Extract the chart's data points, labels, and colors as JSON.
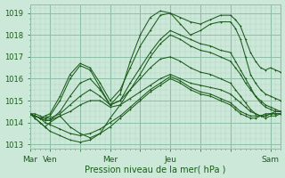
{
  "bg_color": "#cce8d8",
  "grid_color_major": "#8fbfa8",
  "grid_color_minor": "#b0d4c0",
  "line_color": "#1a5c1a",
  "ylim": [
    1012.8,
    1019.4
  ],
  "xlim": [
    0,
    100
  ],
  "yticks": [
    1013,
    1014,
    1015,
    1016,
    1017,
    1018,
    1019
  ],
  "xtick_labels": [
    "Mar",
    "Ven",
    "",
    "Mer",
    "",
    "Jeu",
    "",
    "",
    "Sam"
  ],
  "xtick_positions": [
    0,
    8,
    20,
    32,
    44,
    56,
    68,
    80,
    96
  ],
  "xlabel": "Pression niveau de la mer( hPa )",
  "series": [
    {
      "x": [
        0,
        2,
        4,
        6,
        8,
        12,
        16,
        20,
        24,
        28,
        32,
        36,
        40,
        44,
        48,
        52,
        56,
        60,
        64,
        68,
        72,
        76,
        80,
        82,
        84,
        86,
        88,
        90,
        92,
        94,
        96,
        98,
        100
      ],
      "y": [
        1014.4,
        1014.3,
        1014.2,
        1014.3,
        1014.4,
        1015.2,
        1016.2,
        1016.7,
        1016.5,
        1015.8,
        1015.0,
        1015.5,
        1016.5,
        1017.5,
        1018.2,
        1018.9,
        1019.0,
        1018.8,
        1018.6,
        1018.5,
        1018.7,
        1018.9,
        1018.9,
        1018.7,
        1018.4,
        1017.8,
        1017.2,
        1016.8,
        1016.5,
        1016.4,
        1016.5,
        1016.4,
        1016.3
      ]
    },
    {
      "x": [
        0,
        2,
        4,
        6,
        8,
        12,
        16,
        20,
        24,
        28,
        32,
        36,
        40,
        44,
        48,
        52,
        56,
        60,
        64,
        68,
        72,
        76,
        80,
        82,
        84,
        86,
        88,
        90,
        92,
        94,
        96,
        98,
        100
      ],
      "y": [
        1014.4,
        1014.3,
        1014.2,
        1014.2,
        1014.3,
        1015.0,
        1016.0,
        1016.6,
        1016.4,
        1015.6,
        1014.8,
        1015.3,
        1016.8,
        1018.0,
        1018.8,
        1019.1,
        1019.0,
        1018.5,
        1018.0,
        1018.2,
        1018.5,
        1018.6,
        1018.6,
        1018.3,
        1017.8,
        1017.0,
        1016.2,
        1015.8,
        1015.5,
        1015.3,
        1015.2,
        1015.1,
        1015.0
      ]
    },
    {
      "x": [
        0,
        2,
        4,
        6,
        8,
        12,
        16,
        20,
        24,
        28,
        32,
        36,
        40,
        44,
        48,
        52,
        56,
        60,
        64,
        68,
        72,
        76,
        80,
        82,
        84,
        86,
        88,
        90,
        92,
        94,
        96,
        98,
        100
      ],
      "y": [
        1014.4,
        1014.2,
        1014.0,
        1013.8,
        1014.0,
        1014.3,
        1013.8,
        1013.5,
        1013.3,
        1013.5,
        1014.2,
        1014.8,
        1015.5,
        1016.2,
        1017.0,
        1017.6,
        1018.0,
        1017.8,
        1017.5,
        1017.3,
        1017.2,
        1017.0,
        1016.8,
        1016.5,
        1016.2,
        1015.8,
        1015.5,
        1015.2,
        1015.0,
        1014.8,
        1014.7,
        1014.6,
        1014.5
      ]
    },
    {
      "x": [
        0,
        2,
        4,
        6,
        8,
        12,
        16,
        20,
        24,
        28,
        32,
        36,
        40,
        44,
        48,
        52,
        56,
        60,
        64,
        68,
        72,
        76,
        80,
        82,
        84,
        86,
        88,
        90,
        92,
        94,
        96,
        98,
        100
      ],
      "y": [
        1014.4,
        1014.3,
        1014.2,
        1014.1,
        1014.1,
        1014.5,
        1015.2,
        1015.8,
        1016.0,
        1015.5,
        1014.8,
        1015.0,
        1015.8,
        1016.5,
        1017.2,
        1017.8,
        1018.2,
        1018.0,
        1017.8,
        1017.6,
        1017.5,
        1017.3,
        1017.2,
        1016.8,
        1016.4,
        1016.0,
        1015.6,
        1015.2,
        1014.9,
        1014.7,
        1014.6,
        1014.5,
        1014.5
      ]
    },
    {
      "x": [
        0,
        2,
        4,
        6,
        8,
        12,
        16,
        20,
        24,
        28,
        32,
        36,
        40,
        44,
        48,
        52,
        56,
        60,
        64,
        68,
        72,
        76,
        80,
        82,
        84,
        86,
        88,
        90,
        92,
        94,
        96,
        98,
        100
      ],
      "y": [
        1014.4,
        1014.4,
        1014.3,
        1014.2,
        1014.2,
        1014.4,
        1014.8,
        1015.2,
        1015.5,
        1015.2,
        1014.8,
        1015.0,
        1015.5,
        1016.0,
        1016.5,
        1016.9,
        1017.0,
        1016.8,
        1016.5,
        1016.3,
        1016.2,
        1016.0,
        1015.8,
        1015.5,
        1015.2,
        1014.9,
        1014.6,
        1014.4,
        1014.3,
        1014.2,
        1014.3,
        1014.3,
        1014.4
      ]
    },
    {
      "x": [
        0,
        2,
        4,
        6,
        8,
        12,
        16,
        20,
        24,
        28,
        32,
        36,
        40,
        44,
        48,
        52,
        56,
        60,
        64,
        68,
        72,
        76,
        80,
        82,
        84,
        86,
        88,
        90,
        92,
        94,
        96,
        98,
        100
      ],
      "y": [
        1014.4,
        1014.3,
        1014.2,
        1014.1,
        1014.1,
        1014.3,
        1014.5,
        1014.8,
        1015.0,
        1015.0,
        1014.7,
        1014.8,
        1015.1,
        1015.4,
        1015.7,
        1016.0,
        1016.2,
        1016.0,
        1015.8,
        1015.7,
        1015.6,
        1015.5,
        1015.3,
        1015.1,
        1014.9,
        1014.7,
        1014.5,
        1014.4,
        1014.3,
        1014.3,
        1014.4,
        1014.4,
        1014.4
      ]
    },
    {
      "x": [
        0,
        2,
        4,
        6,
        8,
        12,
        16,
        20,
        24,
        28,
        32,
        36,
        40,
        44,
        48,
        52,
        56,
        60,
        64,
        68,
        72,
        76,
        80,
        82,
        84,
        86,
        88,
        90,
        92,
        94,
        96,
        98,
        100
      ],
      "y": [
        1014.4,
        1014.2,
        1014.0,
        1013.8,
        1013.6,
        1013.4,
        1013.2,
        1013.1,
        1013.2,
        1013.5,
        1013.8,
        1014.2,
        1014.6,
        1015.0,
        1015.4,
        1015.7,
        1016.0,
        1015.8,
        1015.5,
        1015.3,
        1015.2,
        1015.0,
        1014.8,
        1014.6,
        1014.4,
        1014.3,
        1014.2,
        1014.2,
        1014.3,
        1014.3,
        1014.4,
        1014.4,
        1014.4
      ]
    },
    {
      "x": [
        0,
        2,
        4,
        6,
        8,
        12,
        16,
        20,
        24,
        28,
        32,
        36,
        40,
        44,
        48,
        52,
        56,
        60,
        64,
        68,
        72,
        76,
        80,
        82,
        84,
        86,
        88,
        90,
        92,
        94,
        96,
        98,
        100
      ],
      "y": [
        1014.4,
        1014.3,
        1014.2,
        1014.0,
        1013.9,
        1013.7,
        1013.5,
        1013.4,
        1013.5,
        1013.7,
        1014.0,
        1014.3,
        1014.7,
        1015.1,
        1015.5,
        1015.8,
        1016.1,
        1015.9,
        1015.6,
        1015.4,
        1015.3,
        1015.1,
        1014.9,
        1014.7,
        1014.5,
        1014.4,
        1014.3,
        1014.3,
        1014.3,
        1014.4,
        1014.4,
        1014.5,
        1014.5
      ]
    }
  ],
  "figsize": [
    3.2,
    2.0
  ],
  "dpi": 100
}
